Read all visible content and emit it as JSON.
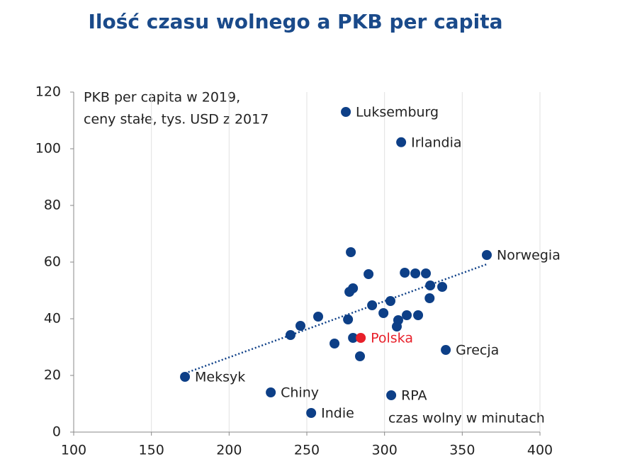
{
  "chart_data": {
    "type": "scatter",
    "title": "Ilość czasu wolnego a PKB per capita",
    "annotation": [
      "PKB per capita w 2019,",
      "ceny stałe,  tys. USD z 2017"
    ],
    "x_label": "czas wolny w minutach",
    "xlim": [
      100,
      400
    ],
    "xticks": [
      100,
      150,
      200,
      250,
      300,
      350,
      400
    ],
    "ylim": [
      0,
      120
    ],
    "yticks": [
      0,
      20,
      40,
      60,
      80,
      100,
      120
    ],
    "grid": true,
    "series": [
      {
        "color": "#0d3f87",
        "x": [
          275.1,
          310.7,
          365.8,
          171.6,
          226.8,
          252.8,
          304.3,
          339.4,
          278.3,
          289.7,
          313,
          319.8,
          326.6,
          329.4,
          337.1,
          329,
          279.7,
          277.4,
          303.8,
          292,
          299.3,
          314.3,
          321.6,
          257.3,
          276.5,
          308.8,
          307.9,
          245.9,
          239.5,
          279.7,
          267.8,
          284.2
        ],
        "y": [
          113,
          102.3,
          62.5,
          19.5,
          14,
          6.75,
          13,
          29,
          63.5,
          55.75,
          56.25,
          56,
          56,
          51.75,
          51.25,
          47.25,
          50.75,
          49.5,
          46.25,
          44.75,
          42,
          41.25,
          41.25,
          40.75,
          39.75,
          39.5,
          37.25,
          37.5,
          34.25,
          33.25,
          31.25,
          26.75
        ],
        "labels": [
          "Luksemburg",
          "Irlandia",
          "Norwegia",
          "Meksyk",
          "Chiny",
          "Indie",
          "RPA",
          "Grecja",
          null,
          null,
          null,
          null,
          null,
          null,
          null,
          null,
          null,
          null,
          null,
          null,
          null,
          null,
          null,
          null,
          null,
          null,
          null,
          null,
          null,
          null,
          null,
          null
        ]
      },
      {
        "color": "#e8202a",
        "x": [
          284.7
        ],
        "y": [
          33.25
        ],
        "labels": [
          "Polska"
        ]
      }
    ],
    "trendline": {
      "color": "#0d3f87",
      "x": [
        171.6,
        365.8
      ],
      "y": [
        20.75,
        59.25
      ]
    }
  }
}
